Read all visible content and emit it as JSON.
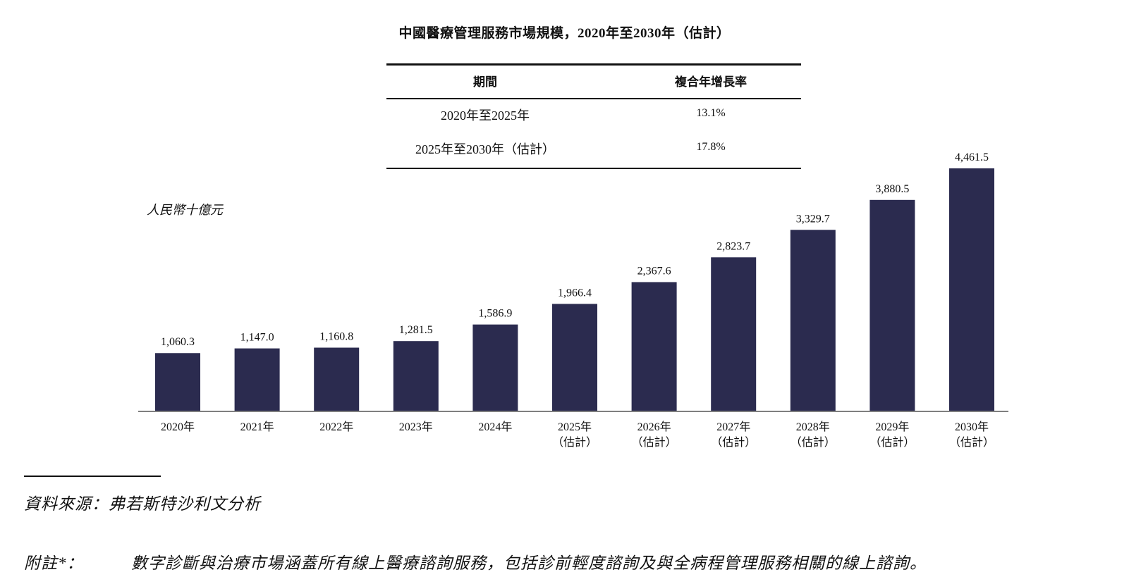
{
  "title": "中國醫療管理服務市場規模，2020年至2030年（估計）",
  "cagr_table": {
    "headers": [
      "期間",
      "複合年增長率"
    ],
    "rows": [
      [
        "2020年至2025年",
        "13.1%"
      ],
      [
        "2025年至2030年（估計）",
        "17.8%"
      ]
    ]
  },
  "chart_data": {
    "type": "bar",
    "title": "中國醫療管理服務市場規模，2020年至2030年（估計）",
    "ylabel": "人民幣十億元",
    "xlabel": "",
    "categories": [
      "2020年",
      "2021年",
      "2022年",
      "2023年",
      "2024年",
      "2025年",
      "2026年",
      "2027年",
      "2028年",
      "2029年",
      "2030年"
    ],
    "category_sublabels": [
      "",
      "",
      "",
      "",
      "",
      "（估計）",
      "（估計）",
      "（估計）",
      "（估計）",
      "（估計）",
      "（估計）"
    ],
    "values": [
      1060.3,
      1147.0,
      1160.8,
      1281.5,
      1586.9,
      1966.4,
      2367.6,
      2823.7,
      3329.7,
      3880.5,
      4461.5
    ],
    "value_labels": [
      "1,060.3",
      "1,147.0",
      "1,160.8",
      "1,281.5",
      "1,586.9",
      "1,966.4",
      "2,367.6",
      "2,823.7",
      "3,329.7",
      "3,880.5",
      "4,461.5"
    ],
    "ylim": [
      0,
      4461.5
    ],
    "grid": false,
    "bar_color": "#2b2b4f"
  },
  "footer": {
    "source": "資料來源：弗若斯特沙利文分析",
    "note_label": "附註*：",
    "note_text": "數字診斷與治療市場涵蓋所有線上醫療諮詢服務，包括診前輕度諮詢及與全病程管理服務相關的線上諮詢。"
  }
}
